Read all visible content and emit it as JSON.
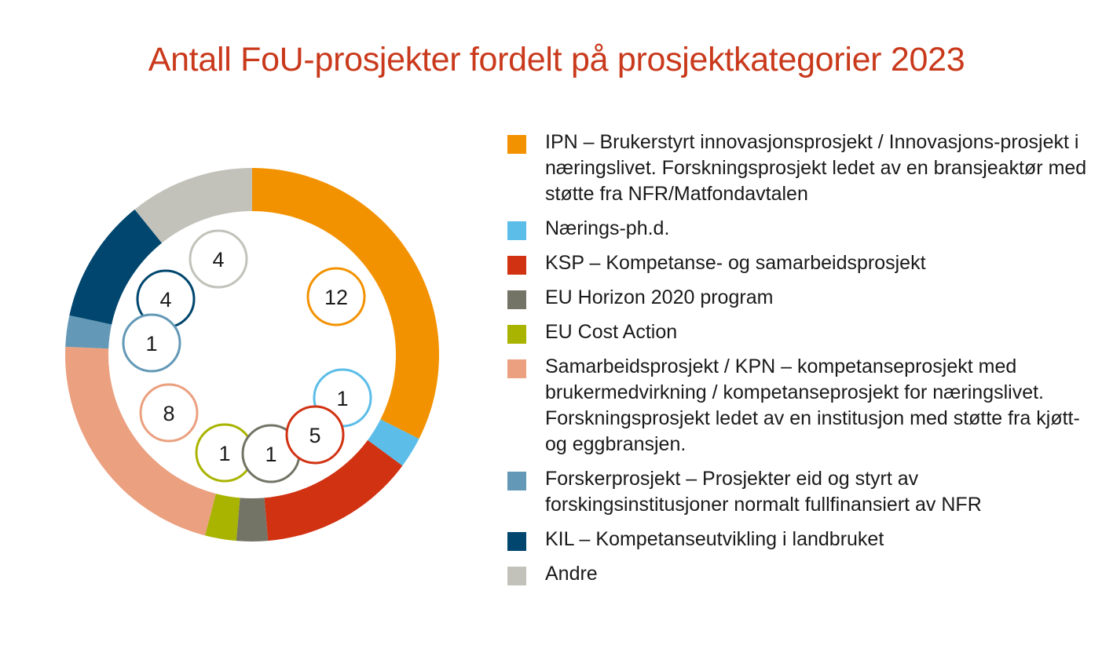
{
  "chart_data": {
    "type": "pie",
    "subtype": "donut",
    "title": "Antall FoU-prosjekter fordelt på prosjektkategorier 2023",
    "legend_position": "right",
    "series": [
      {
        "name": "IPN – Brukerstyrt innovasjonsprosjekt / Innovasjons-prosjekt i næringslivet. Forskningsprosjekt ledet av en bransjeaktør med støtte fra NFR/Matfondavtalen",
        "value": 12,
        "color": "#f39200"
      },
      {
        "name": "Nærings-ph.d.",
        "value": 1,
        "color": "#5bbde8"
      },
      {
        "name": "KSP – Kompetanse- og samarbeidsprosjekt",
        "value": 5,
        "color": "#d13212"
      },
      {
        "name": "EU Horizon 2020 program",
        "value": 1,
        "color": "#737366"
      },
      {
        "name": "EU Cost Action",
        "value": 1,
        "color": "#a9b400"
      },
      {
        "name": "Samarbeidsprosjekt / KPN – kompetanseprosjekt med brukermedvirkning / kompetanseprosjekt for næringslivet. Forskningsprosjekt ledet av en institusjon med støtte fra kjøtt- og eggbransjen.",
        "value": 8,
        "color": "#eba07f"
      },
      {
        "name": "Forskerprosjekt – Prosjekter eid og styrt av forskingsinstitusjoner normalt fullfinansiert av NFR",
        "value": 1,
        "color": "#6399b6"
      },
      {
        "name": "KIL – Kompetanseutvikling i landbruket",
        "value": 4,
        "color": "#00466e"
      },
      {
        "name": "Andre",
        "value": 4,
        "color": "#c2c2bb"
      }
    ]
  },
  "legend": [
    {
      "label": "IPN – Brukerstyrt innovasjonsprosjekt / Innovasjons-prosjekt i næringslivet. Forskningsprosjekt ledet av en bransjeaktør med støtte fra NFR/Matfondavtalen"
    },
    {
      "label": "Nærings-ph.d."
    },
    {
      "label": "KSP – Kompetanse- og samarbeidsprosjekt"
    },
    {
      "label": "EU Horizon 2020 program"
    },
    {
      "label": "EU Cost Action"
    },
    {
      "label": "Samarbeidsprosjekt / KPN – kompetanseprosjekt med brukermedvirkning / kompetanseprosjekt for næringslivet. Forskningsprosjekt ledet av en institusjon med støtte fra kjøtt- og eggbransjen."
    },
    {
      "label": "Forskerprosjekt – Prosjekter eid og styrt av forskingsinstitusjoner normalt fullfinansiert av NFR"
    },
    {
      "label": "KIL – Kompetanseutvikling i landbruket"
    },
    {
      "label": "Andre"
    }
  ]
}
